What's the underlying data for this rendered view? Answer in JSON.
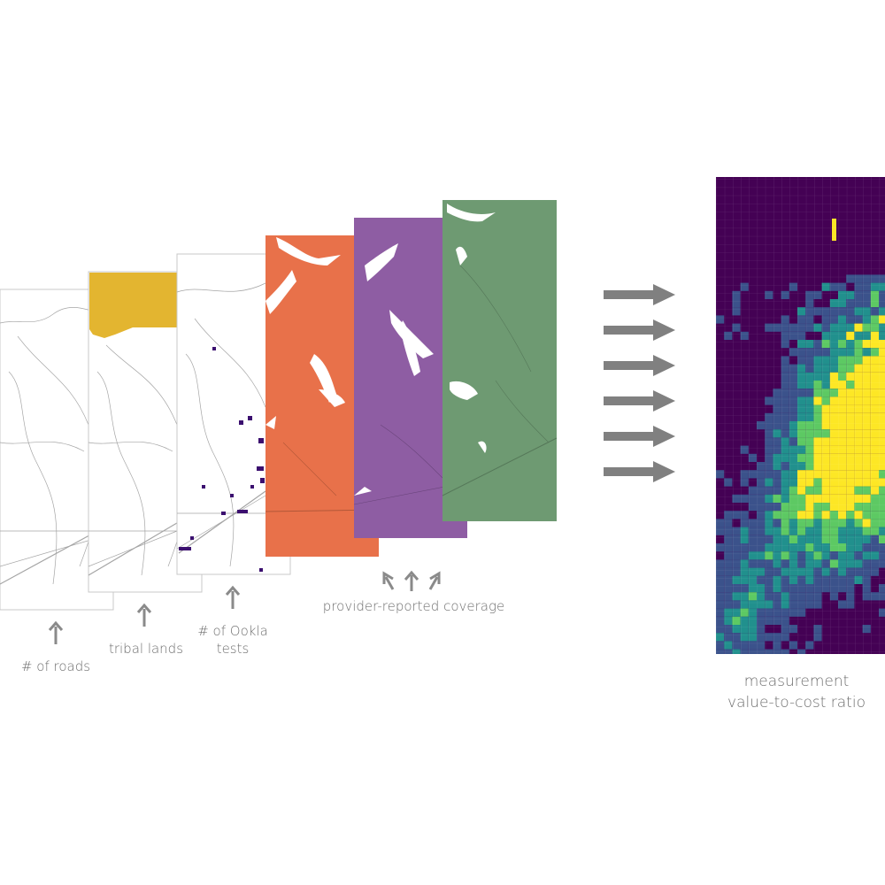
{
  "layers": [
    {
      "id": "roads",
      "fill": "#ffffff",
      "label": "# of roads"
    },
    {
      "id": "tribal",
      "fill": "#ffffff",
      "accent": "#e3b530",
      "label": "tribal lands"
    },
    {
      "id": "ookla",
      "fill": "#ffffff",
      "accent": "#3b0f6f",
      "label": "# of Ookla tests"
    },
    {
      "id": "orange",
      "fill": "#e8714a"
    },
    {
      "id": "purple",
      "fill": "#8e5da3"
    },
    {
      "id": "green",
      "fill": "#6e9a72"
    }
  ],
  "labels": {
    "roads": "# of roads",
    "tribal": "tribal lands",
    "ookla_line1": "# of Ookla",
    "ookla_line2": "tests",
    "coverage": "provider-reported coverage",
    "output_line1": "measurement",
    "output_line2": "value-to-cost ratio"
  },
  "colors": {
    "arrow": "#8a8a8a",
    "road": "#9a9a9a",
    "viridis": [
      "#440154",
      "#3b528b",
      "#21908d",
      "#5dc963",
      "#fde725"
    ]
  }
}
